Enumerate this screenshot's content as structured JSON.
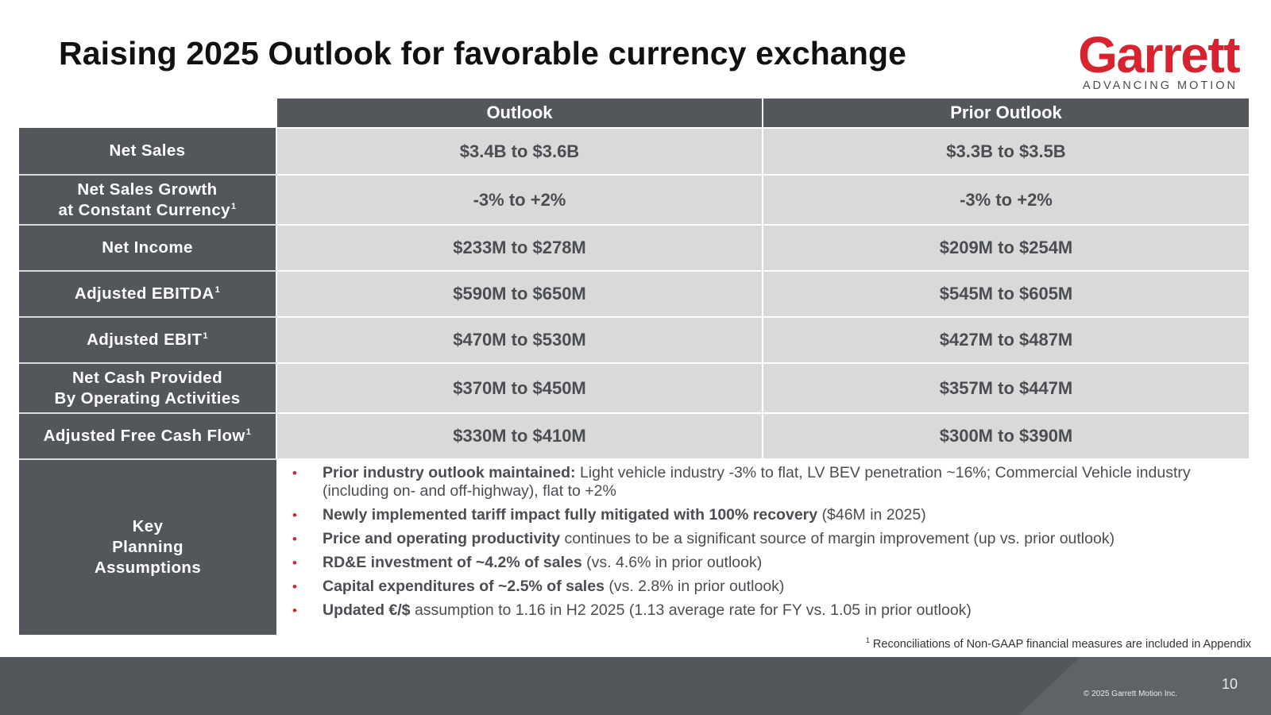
{
  "title": "Raising 2025 Outlook for favorable currency exchange",
  "logo": {
    "wordmark": "Garrett",
    "tagline": "ADVANCING MOTION",
    "brand_color": "#d7232f"
  },
  "table": {
    "headers": [
      "Outlook",
      "Prior Outlook"
    ],
    "rows": [
      {
        "label": [
          "Net Sales"
        ],
        "footnote": "",
        "outlook": "$3.4B to $3.6B",
        "prior": "$3.3B to $3.5B"
      },
      {
        "label": [
          "Net Sales Growth",
          "at Constant Currency"
        ],
        "footnote": "1",
        "outlook": "-3% to +2%",
        "prior": "-3% to +2%"
      },
      {
        "label": [
          "Net Income"
        ],
        "footnote": "",
        "outlook": "$233M to $278M",
        "prior": "$209M to $254M"
      },
      {
        "label": [
          "Adjusted EBITDA"
        ],
        "footnote": "1",
        "outlook": "$590M to $650M",
        "prior": "$545M to $605M"
      },
      {
        "label": [
          "Adjusted EBIT"
        ],
        "footnote": "1",
        "outlook": "$470M to $530M",
        "prior": "$427M to $487M"
      },
      {
        "label": [
          "Net Cash Provided",
          "By Operating Activities"
        ],
        "footnote": "",
        "outlook": "$370M to $450M",
        "prior": "$357M to $447M"
      },
      {
        "label": [
          "Adjusted Free Cash Flow"
        ],
        "footnote": "1",
        "outlook": "$330M to $410M",
        "prior": "$300M to $390M"
      }
    ]
  },
  "key_planning": {
    "label": [
      "Key",
      "Planning",
      "Assumptions"
    ],
    "bullets": [
      {
        "bold": "Prior industry outlook maintained:",
        "text": " Light vehicle industry -3% to flat, LV BEV penetration ~16%; Commercial Vehicle industry (including on- and off-highway), flat to +2%"
      },
      {
        "bold": "Newly implemented tariff impact fully mitigated with 100% recovery",
        "text": " ($46M in 2025)"
      },
      {
        "bold": "Price and operating productivity",
        "text": " continues to be a significant source of margin improvement (up vs. prior outlook)"
      },
      {
        "bold": "RD&E investment of ~4.2% of sales",
        "text": " (vs. 4.6% in prior outlook)"
      },
      {
        "bold": "Capital expenditures of ~2.5% of sales",
        "text": " (vs. 2.8% in prior outlook)"
      },
      {
        "bold": "Updated €/$",
        "text": " assumption to 1.16 in H2 2025 (1.13 average rate for FY vs. 1.05 in prior outlook)"
      }
    ]
  },
  "footnote": {
    "marker": "1",
    "text": " Reconciliations of Non-GAAP financial measures are included in Appendix"
  },
  "footer": {
    "copyright": "© 2025 Garrett Motion Inc.",
    "page_number": "10"
  }
}
